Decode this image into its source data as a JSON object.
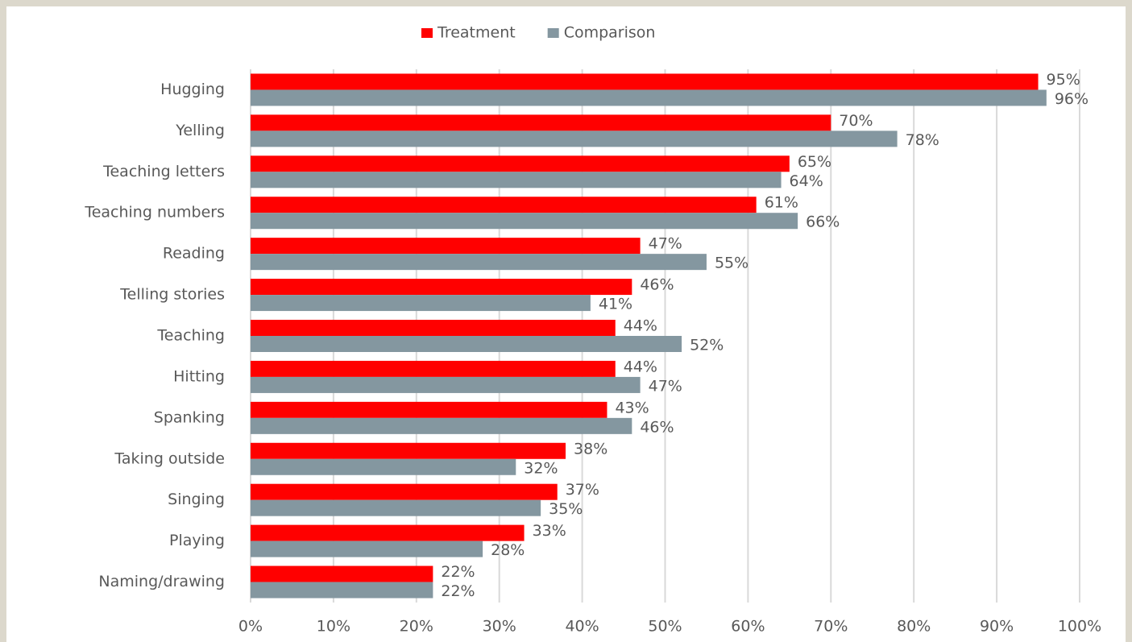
{
  "chart_data": {
    "type": "bar",
    "orientation": "horizontal",
    "categories": [
      "Hugging",
      "Yelling",
      "Teaching letters",
      "Teaching numbers",
      "Reading",
      "Telling stories",
      "Teaching",
      "Hitting",
      "Spanking",
      "Taking outside",
      "Singing",
      "Playing",
      "Naming/drawing"
    ],
    "series": [
      {
        "name": "Treatment",
        "color": "#ff0000",
        "values": [
          95,
          70,
          65,
          61,
          47,
          46,
          44,
          44,
          43,
          38,
          37,
          33,
          22
        ],
        "value_labels": [
          "95%",
          "70%",
          "65%",
          "61%",
          "47%",
          "46%",
          "44%",
          "44%",
          "43%",
          "38%",
          "37%",
          "33%",
          "22%"
        ]
      },
      {
        "name": "Comparison",
        "color": "#8497a0",
        "values": [
          96,
          78,
          64,
          66,
          55,
          41,
          52,
          47,
          46,
          32,
          35,
          28,
          22
        ],
        "value_labels": [
          "96%",
          "78%",
          "64%",
          "66%",
          "55%",
          "41%",
          "52%",
          "47%",
          "46%",
          "32%",
          "35%",
          "28%",
          "22%"
        ]
      }
    ],
    "xlim": [
      0,
      100
    ],
    "xticks": [
      {
        "value": 0,
        "label": "0%"
      },
      {
        "value": 10,
        "label": "10%"
      },
      {
        "value": 20,
        "label": "20%"
      },
      {
        "value": 30,
        "label": "30%"
      },
      {
        "value": 40,
        "label": "40%"
      },
      {
        "value": 50,
        "label": "50%"
      },
      {
        "value": 60,
        "label": "60%"
      },
      {
        "value": 70,
        "label": "70%"
      },
      {
        "value": 80,
        "label": "80%"
      },
      {
        "value": 90,
        "label": "90%"
      },
      {
        "value": 100,
        "label": "100%"
      }
    ],
    "grid": true,
    "legend": "top"
  }
}
